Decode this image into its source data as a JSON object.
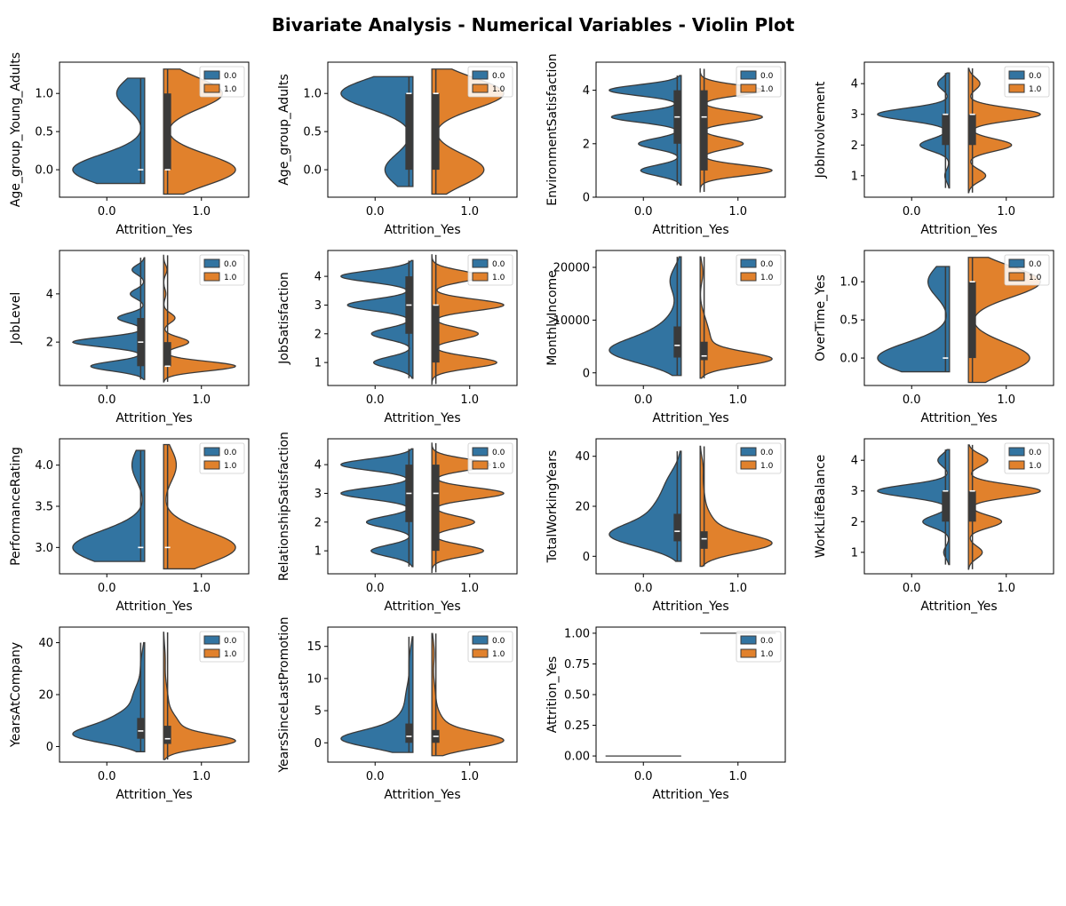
{
  "title": "Bivariate Analysis - Numerical Variables - Violin Plot",
  "colors": {
    "class0": "#3274a1",
    "class1": "#e1812c",
    "edge": "#3a3a3a",
    "box": "#3a3a3a"
  },
  "chart_data": [
    {
      "type": "violin",
      "ylabel": "Age_group_Young_Adults",
      "xlabel": "Attrition_Yes",
      "categories": [
        "0.0",
        "1.0"
      ],
      "legend": [
        "0.0",
        "1.0"
      ],
      "ylim": [
        -0.36,
        1.41
      ],
      "yticks": [
        0,
        0.5,
        1
      ],
      "yticklabels": [
        "0.0",
        "0.5",
        "1.0"
      ],
      "dist0": {
        "values": [
          0,
          1
        ],
        "weights": [
          0.72,
          0.28
        ],
        "min": -0.18,
        "max": 1.2
      },
      "dist1": {
        "values": [
          0,
          1
        ],
        "weights": [
          0.55,
          0.45
        ],
        "min": -0.32,
        "max": 1.32
      },
      "box0": {
        "q1": 0,
        "median": 0,
        "q3": 0
      },
      "box1": {
        "q1": 0,
        "median": 0,
        "q3": 1
      }
    },
    {
      "type": "violin",
      "ylabel": "Age_group_Adults",
      "xlabel": "Attrition_Yes",
      "categories": [
        "0.0",
        "1.0"
      ],
      "legend": [
        "0.0",
        "1.0"
      ],
      "ylim": [
        -0.36,
        1.41
      ],
      "yticks": [
        0,
        0.5,
        1
      ],
      "yticklabels": [
        "0.0",
        "0.5",
        "1.0"
      ],
      "dist0": {
        "values": [
          0,
          1
        ],
        "weights": [
          0.28,
          0.72
        ],
        "min": -0.22,
        "max": 1.22
      },
      "dist1": {
        "values": [
          0,
          1
        ],
        "weights": [
          0.42,
          0.58
        ],
        "min": -0.32,
        "max": 1.32
      },
      "box0": {
        "q1": 0,
        "median": 1,
        "q3": 1
      },
      "box1": {
        "q1": 0,
        "median": 1,
        "q3": 1
      }
    },
    {
      "type": "violin",
      "ylabel": "EnvironmentSatisfaction",
      "xlabel": "Attrition_Yes",
      "categories": [
        "0.0",
        "1.0"
      ],
      "legend": [
        "0.0",
        "1.0"
      ],
      "ylim": [
        0,
        5.05
      ],
      "yticks": [
        0,
        2,
        4
      ],
      "yticklabels": [
        "0",
        "2",
        "4"
      ],
      "dist0": {
        "values": [
          1,
          2,
          3,
          4
        ],
        "weights": [
          0.18,
          0.19,
          0.31,
          0.32
        ],
        "min": 0.45,
        "max": 4.55
      },
      "dist1": {
        "values": [
          1,
          2,
          3,
          4
        ],
        "weights": [
          0.3,
          0.18,
          0.26,
          0.26
        ],
        "min": 0.2,
        "max": 4.8
      },
      "box0": {
        "q1": 2,
        "median": 3,
        "q3": 4
      },
      "box1": {
        "q1": 1,
        "median": 3,
        "q3": 4
      }
    },
    {
      "type": "violin",
      "ylabel": "JobInvolvement",
      "xlabel": "Attrition_Yes",
      "categories": [
        "0.0",
        "1.0"
      ],
      "legend": [
        "0.0",
        "1.0"
      ],
      "ylim": [
        0.3,
        4.7
      ],
      "yticks": [
        1,
        2,
        3,
        4
      ],
      "yticklabels": [
        "1",
        "2",
        "3",
        "4"
      ],
      "dist0": {
        "values": [
          1,
          2,
          3,
          4
        ],
        "weights": [
          0.04,
          0.25,
          0.61,
          0.1
        ],
        "min": 0.6,
        "max": 4.35
      },
      "dist1": {
        "values": [
          1,
          2,
          3,
          4
        ],
        "weights": [
          0.12,
          0.3,
          0.5,
          0.08
        ],
        "min": 0.45,
        "max": 4.5
      },
      "box0": {
        "q1": 2,
        "median": 3,
        "q3": 3
      },
      "box1": {
        "q1": 2,
        "median": 3,
        "q3": 3
      }
    },
    {
      "type": "violin",
      "ylabel": "JobLevel",
      "xlabel": "Attrition_Yes",
      "categories": [
        "0.0",
        "1.0"
      ],
      "legend": [
        "0.0",
        "1.0"
      ],
      "ylim": [
        0.2,
        5.8
      ],
      "yticks": [
        2,
        4
      ],
      "yticklabels": [
        "2",
        "4"
      ],
      "dist0": {
        "values": [
          1,
          2,
          3,
          4,
          5
        ],
        "weights": [
          0.3,
          0.4,
          0.15,
          0.08,
          0.07
        ],
        "min": 0.45,
        "max": 5.5
      },
      "dist1": {
        "values": [
          1,
          2,
          3,
          4,
          5
        ],
        "weights": [
          0.63,
          0.22,
          0.1,
          0.02,
          0.03
        ],
        "min": 0.35,
        "max": 5.6
      },
      "box0": {
        "q1": 1,
        "median": 2,
        "q3": 3
      },
      "box1": {
        "q1": 1,
        "median": 1,
        "q3": 2
      }
    },
    {
      "type": "violin",
      "ylabel": "JobSatisfaction",
      "xlabel": "Attrition_Yes",
      "categories": [
        "0.0",
        "1.0"
      ],
      "legend": [
        "0.0",
        "1.0"
      ],
      "ylim": [
        0.2,
        4.9
      ],
      "yticks": [
        1,
        2,
        3,
        4
      ],
      "yticklabels": [
        "1",
        "2",
        "3",
        "4"
      ],
      "dist0": {
        "values": [
          1,
          2,
          3,
          4
        ],
        "weights": [
          0.18,
          0.19,
          0.3,
          0.33
        ],
        "min": 0.45,
        "max": 4.55
      },
      "dist1": {
        "values": [
          1,
          2,
          3,
          4
        ],
        "weights": [
          0.28,
          0.2,
          0.31,
          0.21
        ],
        "min": 0.25,
        "max": 4.75
      },
      "box0": {
        "q1": 2,
        "median": 3,
        "q3": 4
      },
      "box1": {
        "q1": 1,
        "median": 3,
        "q3": 3
      }
    },
    {
      "type": "violin",
      "ylabel": "MonthlyIncome",
      "xlabel": "Attrition_Yes",
      "categories": [
        "0.0",
        "1.0"
      ],
      "legend": [
        "0.0",
        "1.0"
      ],
      "ylim": [
        -2400,
        23200
      ],
      "yticks": [
        0,
        10000,
        20000
      ],
      "yticklabels": [
        "0",
        "10000",
        "20000"
      ],
      "dist0": {
        "normals": [
          {
            "m": 3800,
            "s": 2200,
            "w": 0.55
          },
          {
            "m": 6500,
            "s": 2500,
            "w": 0.25
          },
          {
            "m": 10500,
            "s": 2500,
            "w": 0.08
          },
          {
            "m": 17500,
            "s": 2500,
            "w": 0.12
          }
        ],
        "min": -500,
        "max": 22000
      },
      "dist1": {
        "normals": [
          {
            "m": 2600,
            "s": 1300,
            "w": 0.72
          },
          {
            "m": 6000,
            "s": 2300,
            "w": 0.18
          },
          {
            "m": 10000,
            "s": 2000,
            "w": 0.06
          },
          {
            "m": 19000,
            "s": 1800,
            "w": 0.04
          }
        ],
        "min": -1000,
        "max": 22000
      },
      "box0": {
        "q1": 2900,
        "median": 5200,
        "q3": 8800
      },
      "box1": {
        "q1": 2400,
        "median": 3200,
        "q3": 5900
      }
    },
    {
      "type": "violin",
      "ylabel": "OverTime_Yes",
      "xlabel": "Attrition_Yes",
      "categories": [
        "0.0",
        "1.0"
      ],
      "legend": [
        "0.0",
        "1.0"
      ],
      "ylim": [
        -0.36,
        1.41
      ],
      "yticks": [
        0,
        0.5,
        1
      ],
      "yticklabels": [
        "0.0",
        "0.5",
        "1.0"
      ],
      "dist0": {
        "values": [
          0,
          1
        ],
        "weights": [
          0.77,
          0.23
        ],
        "min": -0.18,
        "max": 1.2
      },
      "dist1": {
        "values": [
          0,
          1
        ],
        "weights": [
          0.46,
          0.54
        ],
        "min": -0.32,
        "max": 1.32
      },
      "box0": {
        "q1": 0,
        "median": 0,
        "q3": 0
      },
      "box1": {
        "q1": 0,
        "median": 1,
        "q3": 1
      }
    },
    {
      "type": "violin",
      "ylabel": "PerformanceRating",
      "xlabel": "Attrition_Yes",
      "categories": [
        "0.0",
        "1.0"
      ],
      "legend": [
        "0.0",
        "1.0"
      ],
      "ylim": [
        2.68,
        4.32
      ],
      "yticks": [
        3,
        3.5,
        4
      ],
      "yticklabels": [
        "3.0",
        "3.5",
        "4.0"
      ],
      "dist0": {
        "values": [
          3,
          4
        ],
        "weights": [
          0.85,
          0.15
        ],
        "min": 2.83,
        "max": 4.18
      },
      "dist1": {
        "values": [
          3,
          4
        ],
        "weights": [
          0.85,
          0.15
        ],
        "min": 2.74,
        "max": 4.25
      },
      "box0": {
        "q1": 3,
        "median": 3,
        "q3": 3
      },
      "box1": {
        "q1": 3,
        "median": 3,
        "q3": 3
      }
    },
    {
      "type": "violin",
      "ylabel": "RelationshipSatisfaction",
      "xlabel": "Attrition_Yes",
      "categories": [
        "0.0",
        "1.0"
      ],
      "legend": [
        "0.0",
        "1.0"
      ],
      "ylim": [
        0.2,
        4.9
      ],
      "yticks": [
        1,
        2,
        3,
        4
      ],
      "yticklabels": [
        "1",
        "2",
        "3",
        "4"
      ],
      "dist0": {
        "values": [
          1,
          2,
          3,
          4
        ],
        "weights": [
          0.18,
          0.2,
          0.31,
          0.31
        ],
        "min": 0.45,
        "max": 4.55
      },
      "dist1": {
        "values": [
          1,
          2,
          3,
          4
        ],
        "weights": [
          0.23,
          0.19,
          0.32,
          0.26
        ],
        "min": 0.25,
        "max": 4.75
      },
      "box0": {
        "q1": 2,
        "median": 3,
        "q3": 4
      },
      "box1": {
        "q1": 1,
        "median": 3,
        "q3": 4
      }
    },
    {
      "type": "violin",
      "ylabel": "TotalWorkingYears",
      "xlabel": "Attrition_Yes",
      "categories": [
        "0.0",
        "1.0"
      ],
      "legend": [
        "0.0",
        "1.0"
      ],
      "ylim": [
        -7,
        47
      ],
      "yticks": [
        0,
        20,
        40
      ],
      "yticklabels": [
        "0",
        "20",
        "40"
      ],
      "dist0": {
        "normals": [
          {
            "m": 8,
            "s": 4.5,
            "w": 0.55
          },
          {
            "m": 17,
            "s": 6,
            "w": 0.3
          },
          {
            "m": 29,
            "s": 6,
            "w": 0.15
          }
        ],
        "min": -2,
        "max": 42
      },
      "dist1": {
        "normals": [
          {
            "m": 5,
            "s": 3.5,
            "w": 0.7
          },
          {
            "m": 12,
            "s": 5,
            "w": 0.2
          },
          {
            "m": 24,
            "s": 6,
            "w": 0.07
          },
          {
            "m": 36,
            "s": 4,
            "w": 0.03
          }
        ],
        "min": -4,
        "max": 44
      },
      "box0": {
        "q1": 6,
        "median": 10,
        "q3": 17
      },
      "box1": {
        "q1": 3,
        "median": 7,
        "q3": 10
      }
    },
    {
      "type": "violin",
      "ylabel": "WorkLifeBalance",
      "xlabel": "Attrition_Yes",
      "categories": [
        "0.0",
        "1.0"
      ],
      "legend": [
        "0.0",
        "1.0"
      ],
      "ylim": [
        0.3,
        4.7
      ],
      "yticks": [
        1,
        2,
        3,
        4
      ],
      "yticklabels": [
        "1",
        "2",
        "3",
        "4"
      ],
      "dist0": {
        "values": [
          1,
          2,
          3,
          4
        ],
        "weights": [
          0.05,
          0.23,
          0.62,
          0.1
        ],
        "min": 0.6,
        "max": 4.35
      },
      "dist1": {
        "values": [
          1,
          2,
          3,
          4
        ],
        "weights": [
          0.1,
          0.24,
          0.52,
          0.14
        ],
        "min": 0.45,
        "max": 4.5
      },
      "box0": {
        "q1": 2,
        "median": 3,
        "q3": 3
      },
      "box1": {
        "q1": 2,
        "median": 3,
        "q3": 3
      }
    },
    {
      "type": "violin",
      "ylabel": "YearsAtCompany",
      "xlabel": "Attrition_Yes",
      "categories": [
        "0.0",
        "1.0"
      ],
      "legend": [
        "0.0",
        "1.0"
      ],
      "ylim": [
        -6,
        46
      ],
      "yticks": [
        0,
        20,
        40
      ],
      "yticklabels": [
        "0",
        "20",
        "40"
      ],
      "dist0": {
        "normals": [
          {
            "m": 4,
            "s": 3,
            "w": 0.45
          },
          {
            "m": 9,
            "s": 4,
            "w": 0.35
          },
          {
            "m": 19,
            "s": 5,
            "w": 0.15
          },
          {
            "m": 32,
            "s": 5,
            "w": 0.05
          }
        ],
        "min": -2,
        "max": 40
      },
      "dist1": {
        "normals": [
          {
            "m": 2,
            "s": 2.5,
            "w": 0.65
          },
          {
            "m": 8,
            "s": 4,
            "w": 0.22
          },
          {
            "m": 18,
            "s": 6,
            "w": 0.1
          },
          {
            "m": 34,
            "s": 5,
            "w": 0.03
          }
        ],
        "min": -5,
        "max": 44
      },
      "box0": {
        "q1": 3,
        "median": 6,
        "q3": 11
      },
      "box1": {
        "q1": 1,
        "median": 3,
        "q3": 8
      }
    },
    {
      "type": "violin",
      "ylabel": "YearsSinceLastPromotion",
      "xlabel": "Attrition_Yes",
      "categories": [
        "0.0",
        "1.0"
      ],
      "legend": [
        "0.0",
        "1.0"
      ],
      "ylim": [
        -3,
        18
      ],
      "yticks": [
        0,
        5,
        10,
        15
      ],
      "yticklabels": [
        "0",
        "5",
        "10",
        "15"
      ],
      "dist0": {
        "normals": [
          {
            "m": 0.5,
            "s": 1.3,
            "w": 0.6
          },
          {
            "m": 2.5,
            "s": 1.8,
            "w": 0.22
          },
          {
            "m": 7,
            "s": 2.5,
            "w": 0.13
          },
          {
            "m": 13,
            "s": 2,
            "w": 0.05
          }
        ],
        "min": -1.5,
        "max": 16.5
      },
      "dist1": {
        "normals": [
          {
            "m": 0.3,
            "s": 1.2,
            "w": 0.7
          },
          {
            "m": 2.5,
            "s": 1.8,
            "w": 0.18
          },
          {
            "m": 7,
            "s": 2.5,
            "w": 0.08
          },
          {
            "m": 14,
            "s": 2,
            "w": 0.04
          }
        ],
        "min": -2,
        "max": 17
      },
      "box0": {
        "q1": 0,
        "median": 1,
        "q3": 3
      },
      "box1": {
        "q1": 0,
        "median": 1,
        "q3": 2
      }
    },
    {
      "type": "violin",
      "ylabel": "Attrition_Yes",
      "xlabel": "Attrition_Yes",
      "categories": [
        "0.0",
        "1.0"
      ],
      "legend": [
        "0.0",
        "1.0"
      ],
      "ylim": [
        -0.05,
        1.05
      ],
      "yticks": [
        0,
        0.25,
        0.5,
        0.75,
        1
      ],
      "yticklabels": [
        "0.00",
        "0.25",
        "0.50",
        "0.75",
        "1.00"
      ],
      "degenerate": true,
      "level0": 0,
      "level1": 1
    }
  ]
}
